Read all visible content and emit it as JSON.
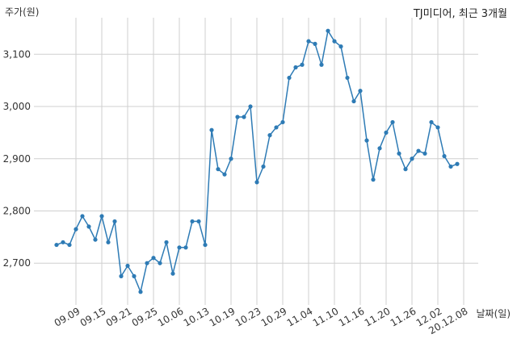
{
  "chart_data": {
    "type": "line",
    "title": "TJ미디어, 최근 3개월",
    "ylabel": "주가(원)",
    "xlabel": "날짜(일)",
    "ylim": [
      2620,
      3170
    ],
    "grid": true,
    "series_color": "#2e7bb5",
    "y_ticks": [
      {
        "value": 2700,
        "label": "2,700"
      },
      {
        "value": 2800,
        "label": "2,800"
      },
      {
        "value": 2900,
        "label": "2,900"
      },
      {
        "value": 3000,
        "label": "3,000"
      },
      {
        "value": 3100,
        "label": "3,100"
      }
    ],
    "x_ticks": [
      {
        "index": 3,
        "label": "09.09"
      },
      {
        "index": 7,
        "label": "09.15"
      },
      {
        "index": 11,
        "label": "09.21"
      },
      {
        "index": 15,
        "label": "09.25"
      },
      {
        "index": 19,
        "label": "10.06"
      },
      {
        "index": 23,
        "label": "10.13"
      },
      {
        "index": 27,
        "label": "10.19"
      },
      {
        "index": 31,
        "label": "10.23"
      },
      {
        "index": 35,
        "label": "10.29"
      },
      {
        "index": 39,
        "label": "11.04"
      },
      {
        "index": 43,
        "label": "11.10"
      },
      {
        "index": 47,
        "label": "11.16"
      },
      {
        "index": 51,
        "label": "11.20"
      },
      {
        "index": 55,
        "label": "11.26"
      },
      {
        "index": 59,
        "label": "12.02"
      },
      {
        "index": 63,
        "label": "20.12.08"
      }
    ],
    "series": [
      {
        "values": [
          2735,
          2740,
          2735,
          2765,
          2790,
          2770,
          2745,
          2790,
          2740,
          2780,
          2675,
          2695,
          2675,
          2645,
          2700,
          2710,
          2700,
          2740,
          2680,
          2730,
          2730,
          2780,
          2780,
          2735,
          2955,
          2880,
          2870,
          2900,
          2980,
          2980,
          3000,
          2855,
          2885,
          2945,
          2960,
          2970,
          3055,
          3075,
          3080,
          3125,
          3120,
          3080,
          3145,
          3125,
          3115,
          3055,
          3010,
          3030,
          2935,
          2860,
          2920,
          2950,
          2970,
          2910,
          2880,
          2900,
          2915,
          2910,
          2970,
          2960,
          2905,
          2885,
          2890
        ]
      }
    ]
  }
}
